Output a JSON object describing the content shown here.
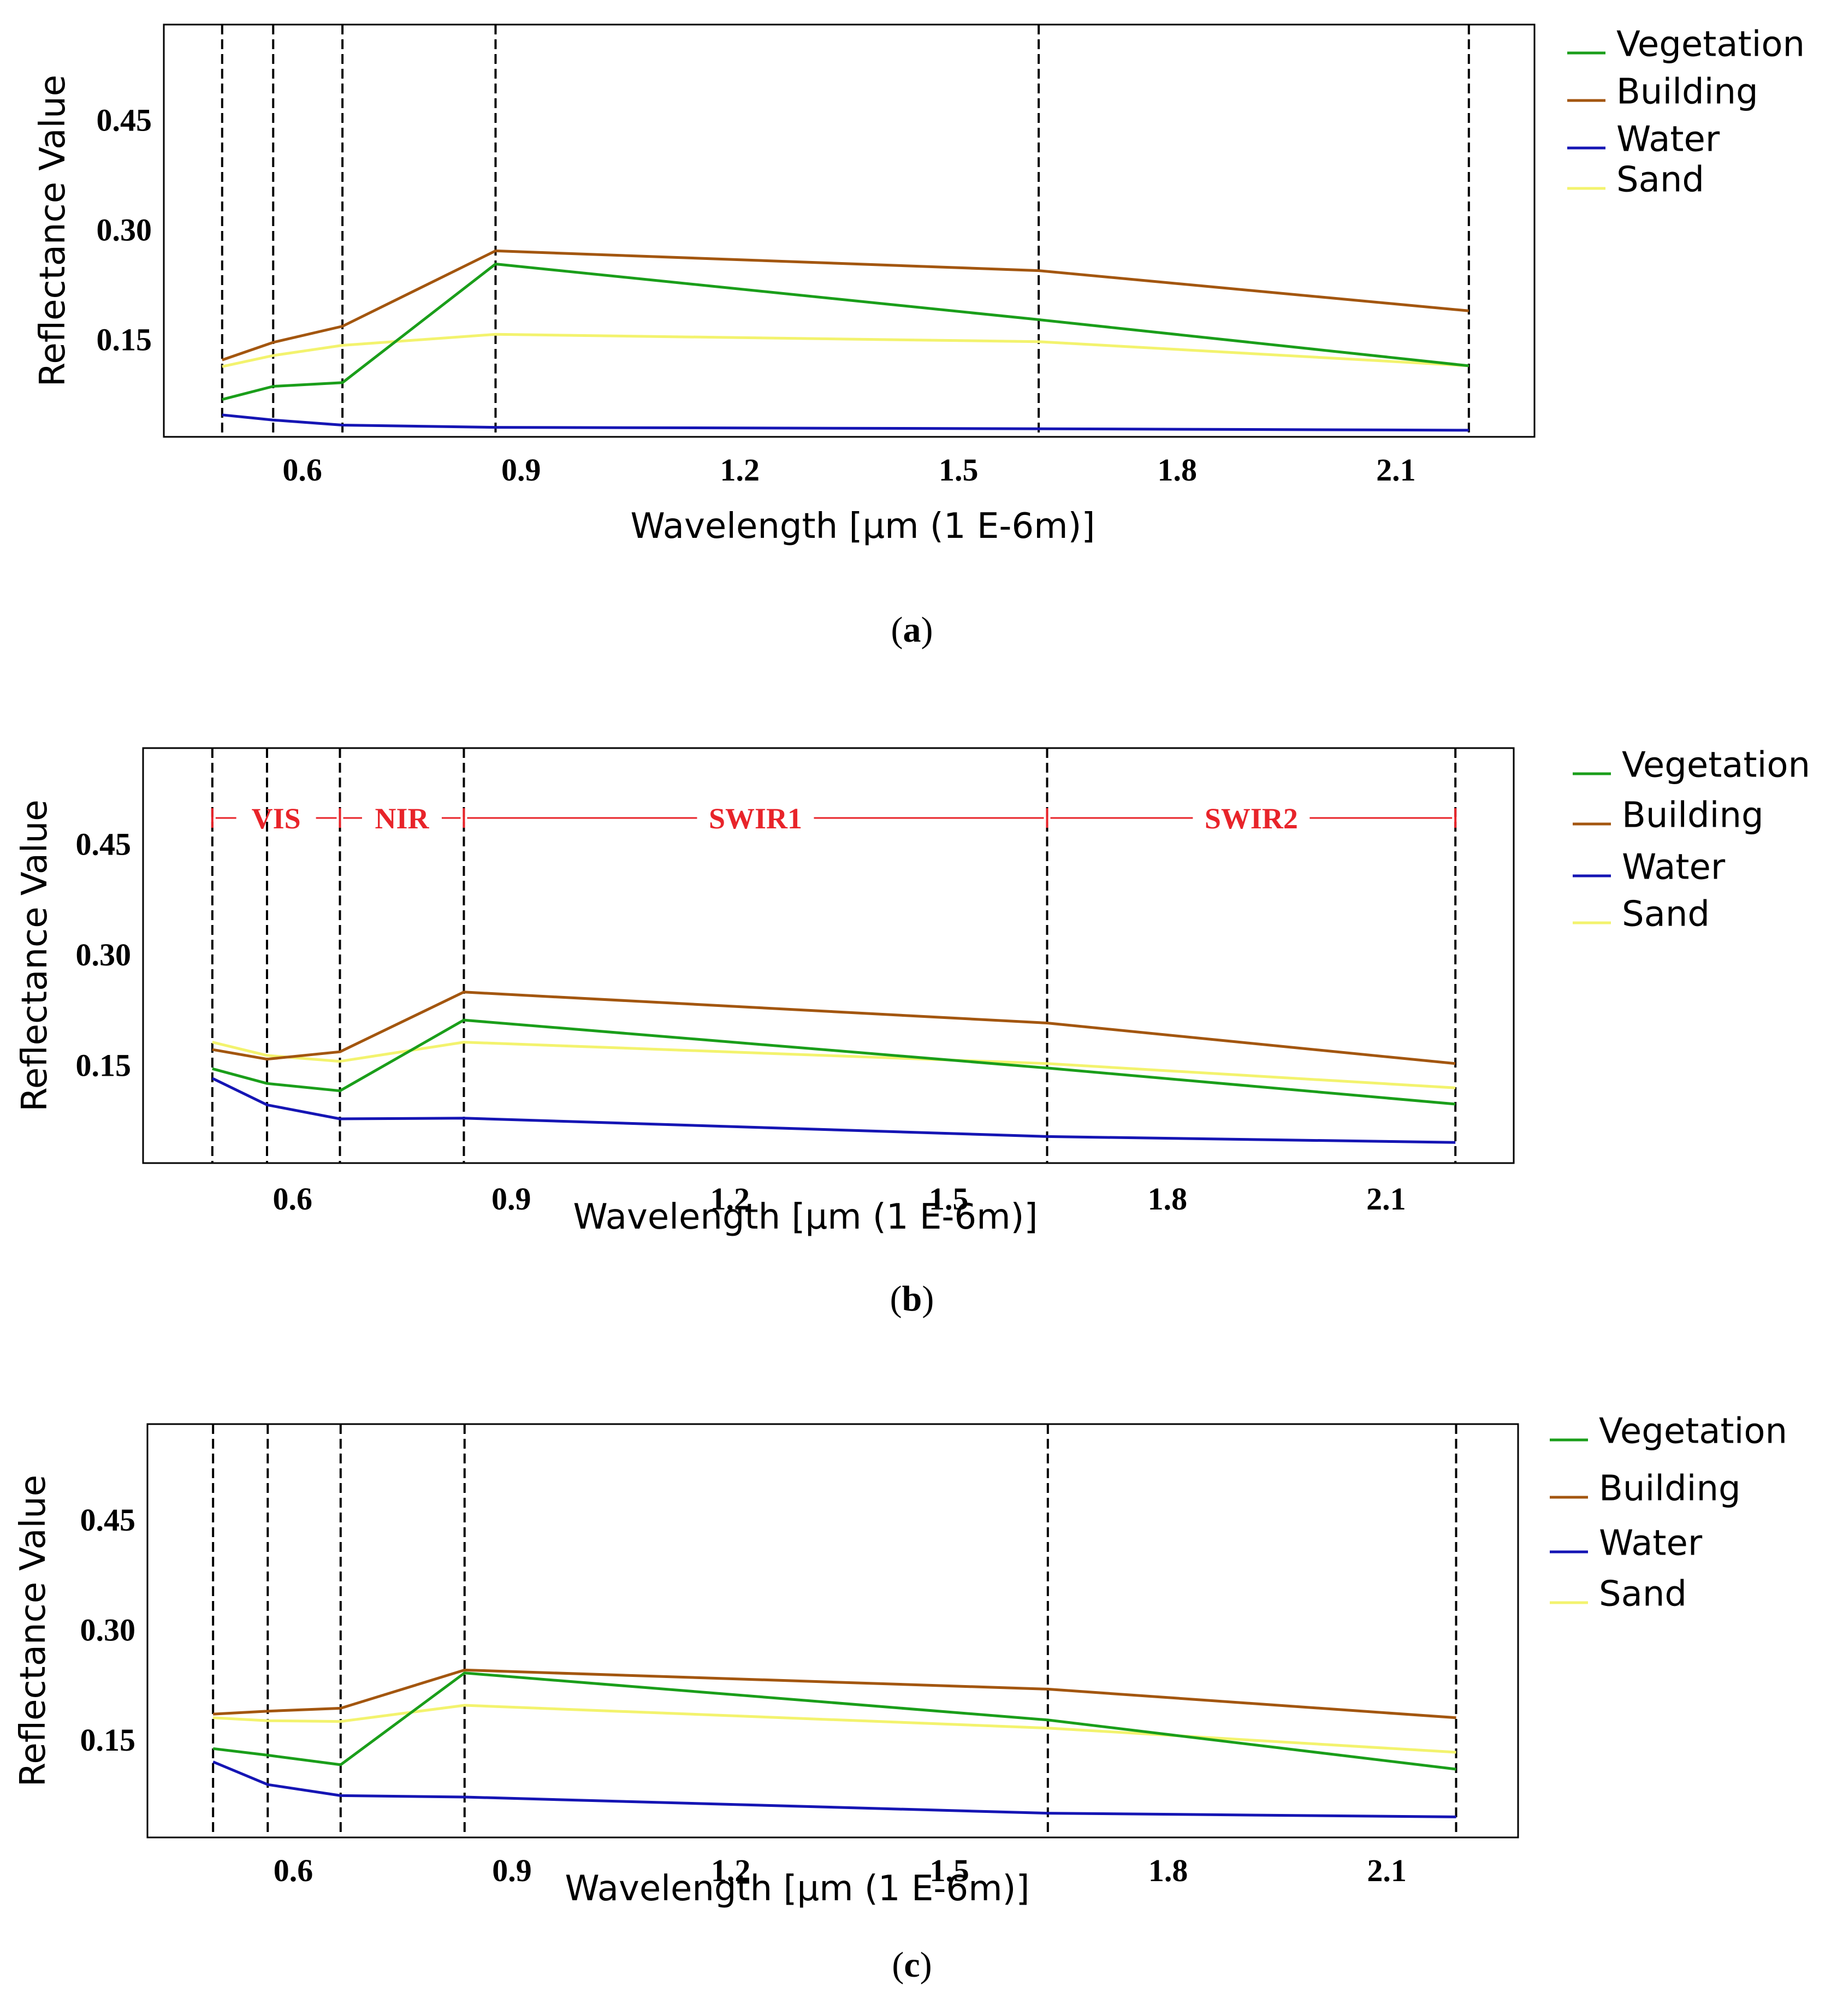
{
  "colors": {
    "vegetation": "#1a9e1a",
    "building": "#a3560f",
    "water": "#1515b4",
    "sand": "#f3f36e",
    "band_divider": "#000000",
    "band_annotation": "#e8242a"
  },
  "chart_data": [
    {
      "type": "line",
      "caption_letter": "a",
      "xlabel": "Wavelength [µm (1 E-6m)]",
      "ylabel": "Reflectance Value",
      "x_ticks": [
        "0.6",
        "0.9",
        "1.2",
        "1.5",
        "1.8",
        "2.1"
      ],
      "y_ticks": [
        "0.15",
        "0.30",
        "0.45"
      ],
      "xlim": [
        0.41,
        2.29
      ],
      "ylim": [
        0.017,
        0.58
      ],
      "band_dividers": [
        0.49,
        0.56,
        0.655,
        0.865,
        1.61,
        2.2
      ],
      "legend": [
        "Vegetation",
        "Building",
        "Water",
        "Sand"
      ],
      "x": [
        0.49,
        0.56,
        0.655,
        0.865,
        1.61,
        2.2
      ],
      "series": [
        {
          "name": "Vegetation",
          "key": "vegetation",
          "values": [
            0.068,
            0.086,
            0.091,
            0.253,
            0.177,
            0.114
          ]
        },
        {
          "name": "Building",
          "key": "building",
          "values": [
            0.122,
            0.146,
            0.168,
            0.271,
            0.244,
            0.189
          ]
        },
        {
          "name": "Water",
          "key": "water",
          "values": [
            0.047,
            0.04,
            0.033,
            0.03,
            0.028,
            0.026
          ]
        },
        {
          "name": "Sand",
          "key": "sand",
          "values": [
            0.113,
            0.128,
            0.142,
            0.157,
            0.147,
            0.114
          ]
        }
      ]
    },
    {
      "type": "line",
      "caption_letter": "b",
      "xlabel": "Wavelength [µm (1 E-6m)]",
      "ylabel": "Reflectance Value",
      "x_ticks": [
        "0.6",
        "0.9",
        "1.2",
        "1.5",
        "1.8",
        "2.1"
      ],
      "y_ticks": [
        "0.15",
        "0.30",
        "0.45"
      ],
      "xlim": [
        0.395,
        2.275
      ],
      "ylim": [
        0.017,
        0.58
      ],
      "band_dividers": [
        0.49,
        0.565,
        0.665,
        0.835,
        1.635,
        2.195
      ],
      "band_labels": [
        "VIS",
        "NIR",
        "SWIR1",
        "SWIR2"
      ],
      "legend": [
        "Vegetation",
        "Building",
        "Water",
        "Sand"
      ],
      "x": [
        0.49,
        0.565,
        0.665,
        0.835,
        1.635,
        2.195
      ],
      "series": [
        {
          "name": "Vegetation",
          "key": "vegetation",
          "values": [
            0.145,
            0.125,
            0.115,
            0.211,
            0.146,
            0.097
          ]
        },
        {
          "name": "Building",
          "key": "building",
          "values": [
            0.171,
            0.158,
            0.168,
            0.249,
            0.207,
            0.152
          ]
        },
        {
          "name": "Water",
          "key": "water",
          "values": [
            0.132,
            0.096,
            0.077,
            0.078,
            0.053,
            0.045
          ]
        },
        {
          "name": "Sand",
          "key": "sand",
          "values": [
            0.181,
            0.163,
            0.155,
            0.181,
            0.152,
            0.119
          ]
        }
      ]
    },
    {
      "type": "line",
      "caption_letter": "c",
      "xlabel": "Wavelength [µm (1 E-6m)]",
      "ylabel": "Reflectance Value",
      "x_ticks": [
        "0.6",
        "0.9",
        "1.2",
        "1.5",
        "1.8",
        "2.1"
      ],
      "y_ticks": [
        "0.15",
        "0.30",
        "0.45"
      ],
      "xlim": [
        0.4,
        2.28
      ],
      "ylim": [
        0.017,
        0.58
      ],
      "band_dividers": [
        0.49,
        0.565,
        0.665,
        0.835,
        1.635,
        2.195
      ],
      "legend": [
        "Vegetation",
        "Building",
        "Water",
        "Sand"
      ],
      "x": [
        0.49,
        0.565,
        0.665,
        0.835,
        1.635,
        2.195
      ],
      "series": [
        {
          "name": "Vegetation",
          "key": "vegetation",
          "values": [
            0.138,
            0.129,
            0.116,
            0.241,
            0.177,
            0.11
          ]
        },
        {
          "name": "Building",
          "key": "building",
          "values": [
            0.185,
            0.189,
            0.193,
            0.245,
            0.219,
            0.18
          ]
        },
        {
          "name": "Water",
          "key": "water",
          "values": [
            0.12,
            0.089,
            0.074,
            0.072,
            0.05,
            0.045
          ]
        },
        {
          "name": "Sand",
          "key": "sand",
          "values": [
            0.18,
            0.176,
            0.175,
            0.197,
            0.166,
            0.133
          ]
        }
      ]
    }
  ]
}
